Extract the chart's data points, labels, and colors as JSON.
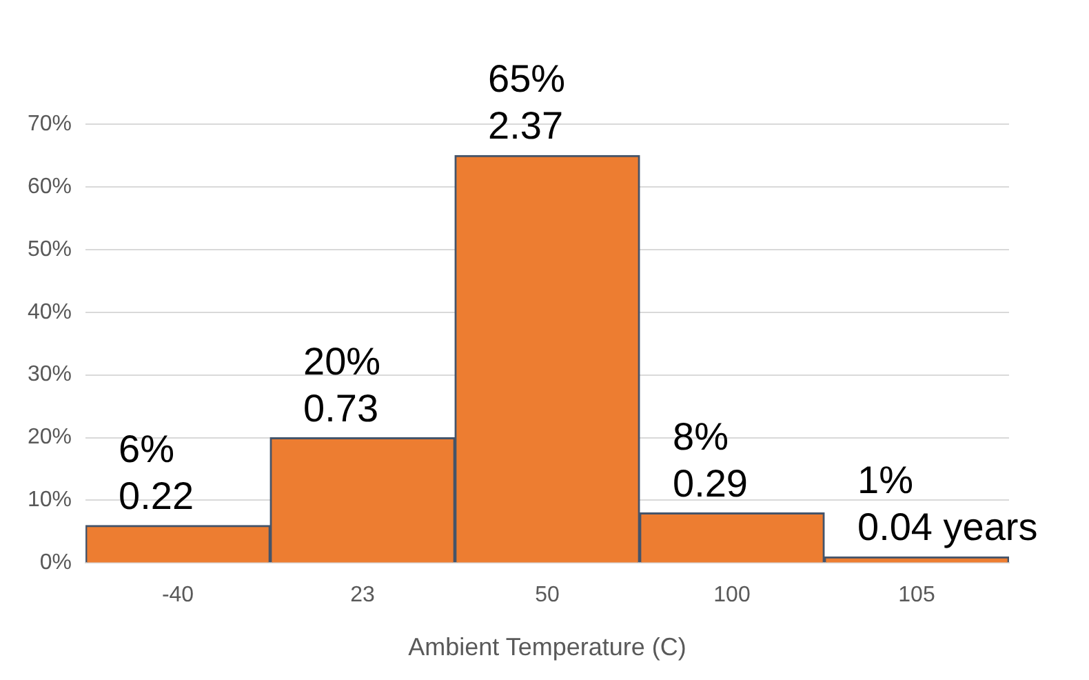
{
  "chart_data": {
    "type": "bar",
    "xlabel": "Ambient Temperature (C)",
    "categories": [
      "-40",
      "23",
      "50",
      "100",
      "105"
    ],
    "values": [
      6,
      20,
      65,
      8,
      1
    ],
    "value_labels": [
      "6%\n0.22",
      "20%\n0.73",
      "65%\n2.37",
      "8%\n0.29",
      "1%\n0.04 years"
    ],
    "color": "#ed7d31",
    "ylim": [
      0,
      70
    ],
    "yticks": [
      {
        "value": 0,
        "label": "0%"
      },
      {
        "value": 10,
        "label": "10%"
      },
      {
        "value": 20,
        "label": "20%"
      },
      {
        "value": 30,
        "label": "30%"
      },
      {
        "value": 40,
        "label": "40%"
      },
      {
        "value": 50,
        "label": "50%"
      },
      {
        "value": 60,
        "label": "60%"
      },
      {
        "value": 70,
        "label": "70%"
      }
    ],
    "grid": "y",
    "legend": false
  }
}
